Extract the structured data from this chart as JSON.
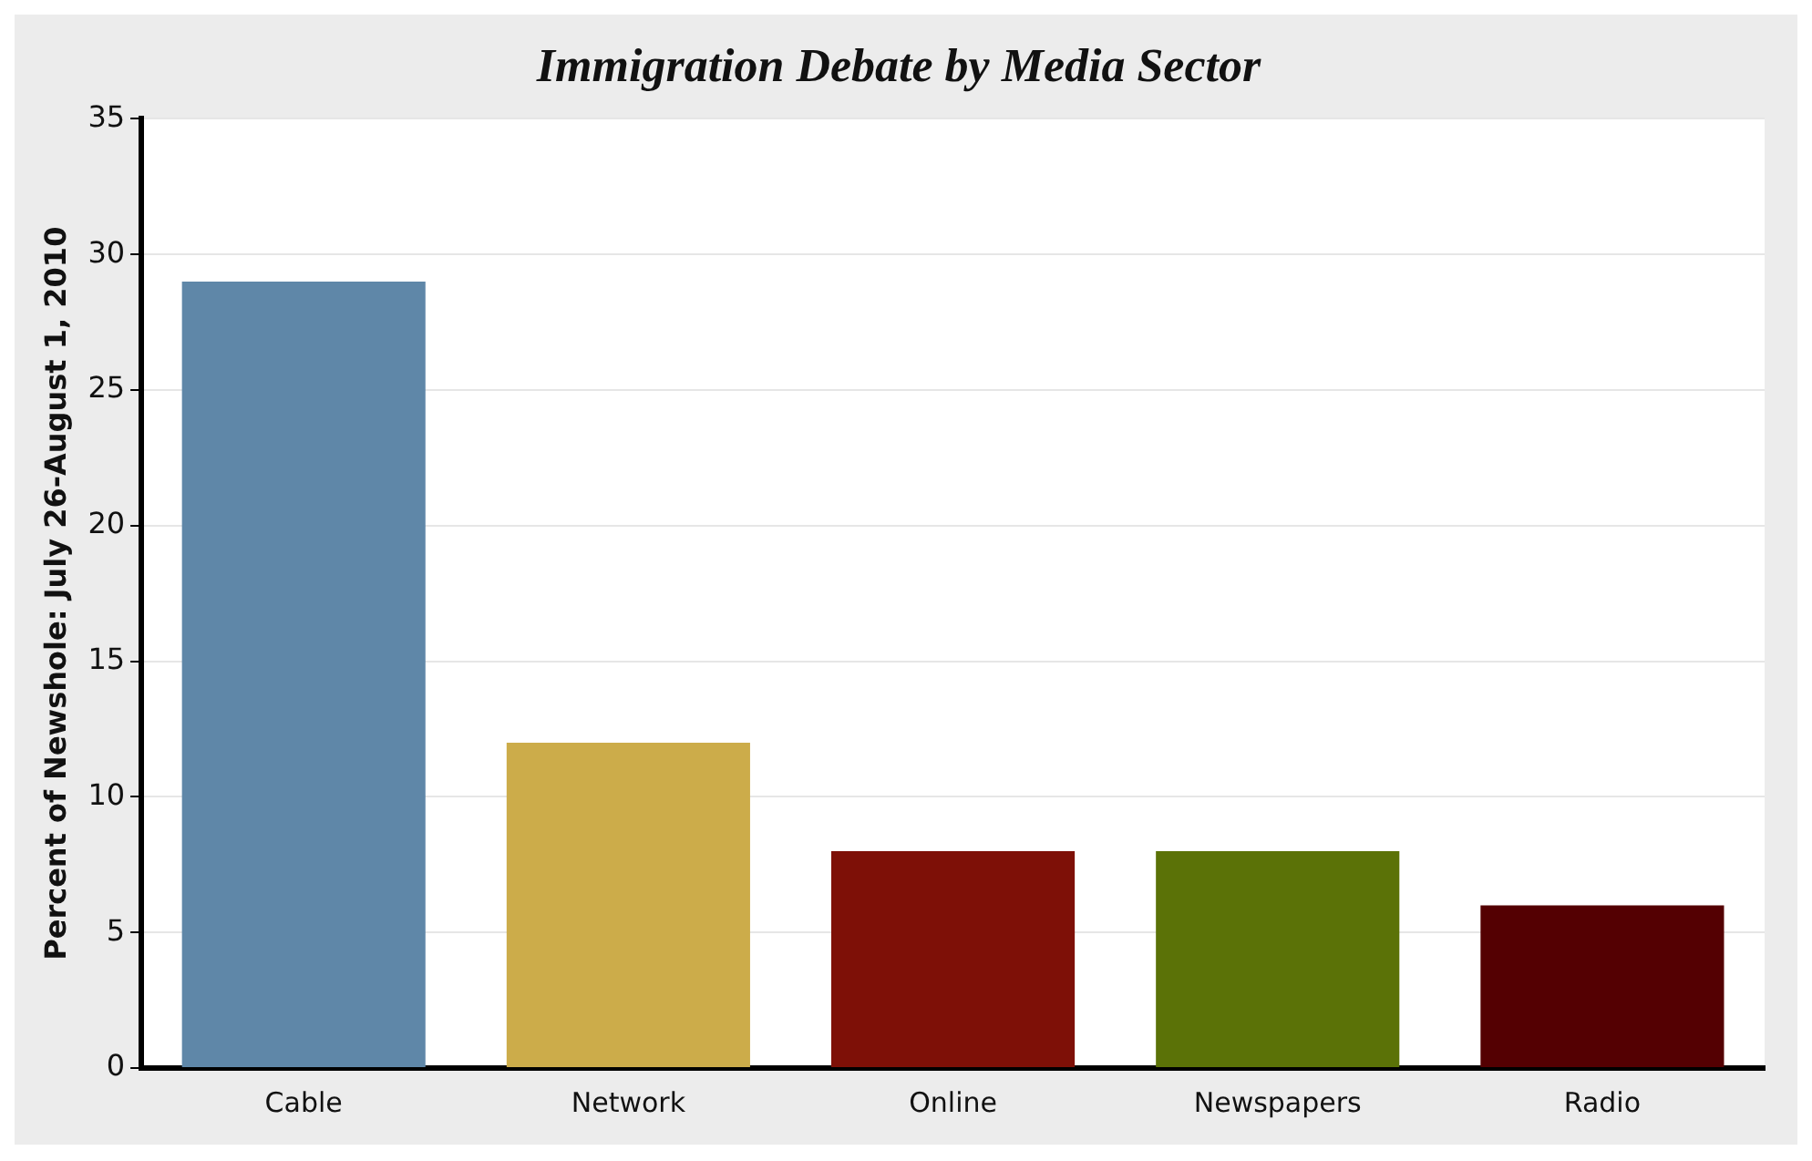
{
  "chart_data": {
    "type": "bar",
    "title": "Immigration Debate by Media Sector",
    "ylabel": "Percent of Newshole: July 26-August 1, 2010",
    "categories": [
      "Cable",
      "Network",
      "Online",
      "Newspapers",
      "Radio"
    ],
    "values": [
      29,
      12,
      8,
      8,
      6
    ],
    "colors": [
      "#5f87a8",
      "#ccac4a",
      "#7e1007",
      "#5b7207",
      "#540002"
    ],
    "ylim": [
      0,
      35
    ],
    "yticks": [
      0,
      5,
      10,
      15,
      20,
      25,
      30,
      35
    ],
    "grid": "y",
    "legend": false
  }
}
